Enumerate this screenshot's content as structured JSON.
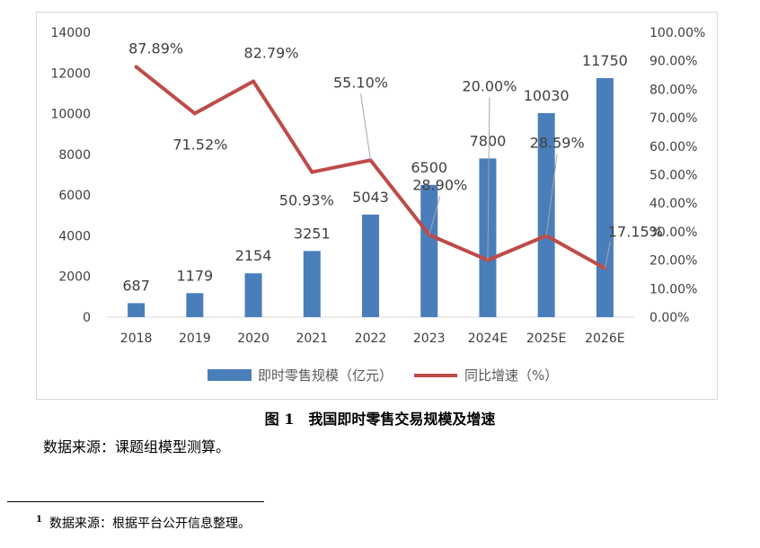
{
  "chart_data": {
    "type": "bar",
    "categories": [
      "2018",
      "2019",
      "2020",
      "2021",
      "2022",
      "2023",
      "2024E",
      "2025E",
      "2026E"
    ],
    "series": [
      {
        "name": "即时零售规模（亿元）",
        "type": "bar",
        "axis": "left",
        "color": "#4a7ebb",
        "values": [
          687,
          1179,
          2154,
          3251,
          5043,
          6500,
          7800,
          10030,
          11750
        ],
        "labels": [
          "687",
          "1179",
          "2154",
          "3251",
          "5043",
          "6500",
          "7800",
          "10030",
          "11750"
        ]
      },
      {
        "name": "同比增速（%）",
        "type": "line",
        "axis": "right",
        "color": "#be4b48",
        "values": [
          87.89,
          71.52,
          82.79,
          50.93,
          55.1,
          28.9,
          20.0,
          28.59,
          17.15
        ],
        "labels": [
          "87.89%",
          "71.52%",
          "82.79%",
          "50.93%",
          "55.10%",
          "28.90%",
          "20.00%",
          "28.59%",
          "17.15%"
        ]
      }
    ],
    "ylim_left": [
      0,
      14000
    ],
    "yticks_left": [
      "0",
      "2000",
      "4000",
      "6000",
      "8000",
      "10000",
      "12000",
      "14000"
    ],
    "ylim_right": [
      0,
      100
    ],
    "yticks_right": [
      "0.00%",
      "10.00%",
      "20.00%",
      "30.00%",
      "40.00%",
      "50.00%",
      "60.00%",
      "70.00%",
      "80.00%",
      "90.00%",
      "100.00%"
    ],
    "legend_position": "bottom",
    "grid": false
  },
  "caption": "图 1　我国即时零售交易规模及增速",
  "source": "数据来源：课题组模型测算。",
  "footnote": {
    "mark": "1",
    "text": "数据来源：根据平台公开信息整理。"
  },
  "colors": {
    "bar": "#4a7ebb",
    "line": "#be4b48",
    "axis_text": "#404040",
    "leader": "#a6a6a6"
  }
}
